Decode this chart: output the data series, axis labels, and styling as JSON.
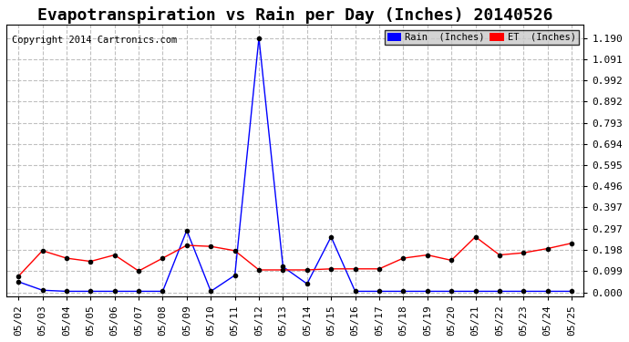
{
  "title": "Evapotranspiration vs Rain per Day (Inches) 20140526",
  "copyright": "Copyright 2014 Cartronics.com",
  "dates": [
    "05/02",
    "05/03",
    "05/04",
    "05/05",
    "05/06",
    "05/07",
    "05/08",
    "05/09",
    "05/10",
    "05/11",
    "05/12",
    "05/13",
    "05/14",
    "05/15",
    "05/16",
    "05/17",
    "05/18",
    "05/19",
    "05/20",
    "05/21",
    "05/22",
    "05/23",
    "05/24",
    "05/25"
  ],
  "rain": [
    0.05,
    0.01,
    0.005,
    0.005,
    0.005,
    0.005,
    0.005,
    0.29,
    0.005,
    0.08,
    1.19,
    0.12,
    0.04,
    0.26,
    0.005,
    0.005,
    0.005,
    0.005,
    0.005,
    0.005,
    0.005,
    0.005,
    0.005,
    0.005
  ],
  "et": [
    0.075,
    0.195,
    0.16,
    0.145,
    0.175,
    0.1,
    0.16,
    0.22,
    0.215,
    0.195,
    0.105,
    0.105,
    0.105,
    0.11,
    0.11,
    0.11,
    0.16,
    0.175,
    0.15,
    0.26,
    0.175,
    0.185,
    0.205,
    0.23
  ],
  "rain_color": "#0000ff",
  "et_color": "#ff0000",
  "background_color": "#ffffff",
  "grid_color": "#c0c0c0",
  "yticks": [
    0.0,
    0.099,
    0.198,
    0.297,
    0.397,
    0.496,
    0.595,
    0.694,
    0.793,
    0.892,
    0.992,
    1.091,
    1.19
  ],
  "ylim": [
    -0.02,
    1.25
  ],
  "title_fontsize": 13,
  "tick_fontsize": 8
}
